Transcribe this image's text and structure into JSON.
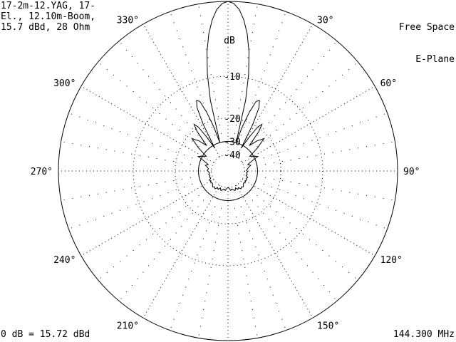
{
  "header": {
    "antenna_lines": [
      "17-2m-12.YAG, 17-",
      "El., 12.10m-Boom,",
      "15.7 dBd, 28 Ohm"
    ],
    "environment_lines": [
      "Free Space",
      "E-Plane"
    ]
  },
  "footer": {
    "reference": "0 dB = 15.72 dBd",
    "frequency": "144.300 MHz"
  },
  "chart_data": {
    "type": "polar",
    "radial_unit_label": "dB",
    "radial_ticks": [
      {
        "value": -10,
        "label": "-10"
      },
      {
        "value": -20,
        "label": "-20"
      },
      {
        "value": -30,
        "label": "-30"
      },
      {
        "value": -40,
        "label": "-40"
      }
    ],
    "angle_labels": [
      {
        "angle": 330,
        "label": "330°"
      },
      {
        "angle": 30,
        "label": "30°"
      },
      {
        "angle": 60,
        "label": "60°"
      },
      {
        "angle": 90,
        "label": "90°"
      },
      {
        "angle": 120,
        "label": "120°"
      },
      {
        "angle": 150,
        "label": "150°"
      },
      {
        "angle": 210,
        "label": "210°"
      },
      {
        "angle": 240,
        "label": "240°"
      },
      {
        "angle": 270,
        "label": "270°"
      },
      {
        "angle": 300,
        "label": "300°"
      }
    ],
    "pattern": {
      "angles": [
        0,
        2,
        4,
        6,
        8,
        10,
        12,
        14,
        16,
        18,
        20,
        22,
        24,
        26,
        28,
        30,
        32,
        34,
        36,
        38,
        40,
        44,
        48,
        52,
        56,
        60,
        64,
        68,
        72,
        76,
        80,
        84,
        88,
        92,
        96,
        100,
        104,
        108,
        112,
        116,
        120,
        124,
        128,
        132,
        136,
        140,
        144,
        148,
        152,
        156,
        160,
        164,
        168,
        172,
        176,
        180,
        184,
        188,
        192,
        196,
        200,
        204,
        208,
        212,
        216,
        220,
        224,
        228,
        232,
        236,
        240,
        244,
        248,
        252,
        256,
        260,
        264,
        268,
        272,
        276,
        280,
        284,
        288,
        292,
        296,
        300,
        304,
        308,
        312,
        316,
        320,
        322,
        324,
        326,
        328,
        330,
        332,
        334,
        336,
        338,
        340,
        342,
        344,
        346,
        348,
        350,
        352,
        354,
        356,
        358
      ],
      "gain_db": [
        0,
        -0.2,
        -0.8,
        -1.9,
        -3.5,
        -5.8,
        -9.2,
        -14.5,
        -30,
        -22,
        -17,
        -14,
        -13.5,
        -15,
        -20,
        -32,
        -25,
        -20,
        -18.5,
        -21,
        -28,
        -24,
        -21.5,
        -26,
        -32,
        -30,
        -28,
        -33,
        -36,
        -34,
        -36,
        -37,
        -38,
        -37,
        -38,
        -37,
        -38,
        -36,
        -37,
        -36,
        -37,
        -36,
        -37,
        -36,
        -35,
        -36,
        -35,
        -37,
        -36,
        -38,
        -36,
        -37,
        -38,
        -37,
        -39,
        -40,
        -39,
        -37,
        -38,
        -37,
        -36,
        -38,
        -36,
        -37,
        -35,
        -36,
        -35,
        -36,
        -37,
        -36,
        -37,
        -36,
        -38,
        -37,
        -38,
        -37,
        -38,
        -37,
        -36,
        -37,
        -36,
        -34,
        -36,
        -33,
        -28,
        -30,
        -32,
        -26,
        -21.5,
        -24,
        -28,
        -21,
        -18.5,
        -20,
        -25,
        -32,
        -20,
        -15,
        -13.5,
        -14,
        -17,
        -22,
        -30,
        -14.5,
        -9.2,
        -5.8,
        -3.5,
        -1.9,
        -0.8,
        -0.2
      ]
    }
  }
}
